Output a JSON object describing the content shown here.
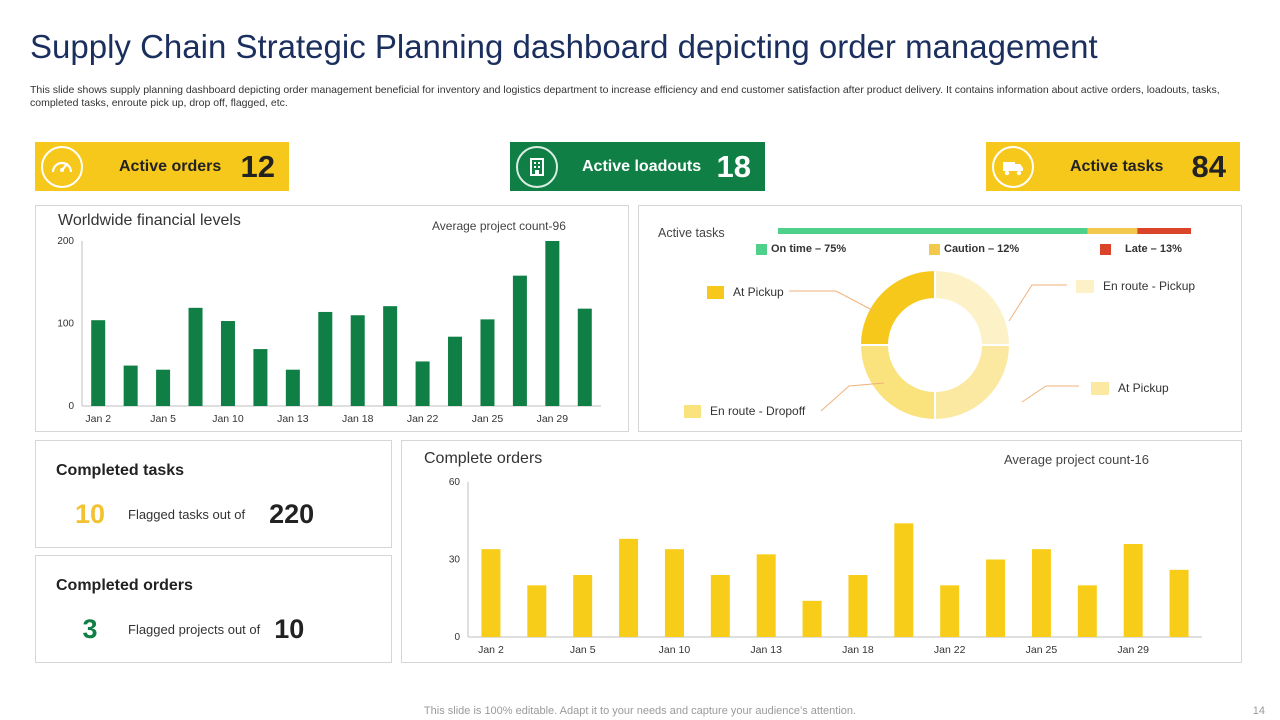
{
  "title": "Supply Chain Strategic Planning dashboard depicting order management",
  "description": "This slide shows supply planning dashboard depicting order management beneficial for inventory and logistics department to increase efficiency and end customer satisfaction after product delivery. It contains information about active orders, loadouts, tasks, completed tasks, enroute  pick up, drop off, flagged, etc.",
  "kpis": {
    "active_orders": {
      "label": "Active orders",
      "value": "12",
      "icon": "speedometer-icon"
    },
    "active_loadouts": {
      "label": "Active loadouts",
      "value": "18",
      "icon": "building-icon"
    },
    "active_tasks": {
      "label": "Active tasks",
      "value": "84",
      "icon": "truck-icon"
    }
  },
  "financial": {
    "title": "Worldwide financial levels",
    "subtitle": "Average  project count-96"
  },
  "active_tasks_panel": {
    "title": "Active tasks",
    "progress": [
      {
        "label": "On time – 75%",
        "percent": 75,
        "color": "#4fd18b"
      },
      {
        "label": "Caution  – 12%",
        "percent": 12,
        "color": "#f2c94c"
      },
      {
        "label": "Late – 13%",
        "percent": 13,
        "color": "#d9442b"
      }
    ],
    "callouts": {
      "left_top": "At Pickup",
      "right_top": "En route - Pickup",
      "right_bottom": "At Pickup",
      "left_bottom": "En route - Dropoff"
    }
  },
  "completed_tasks": {
    "title": "Completed tasks",
    "value": "10",
    "label": "Flagged tasks out of",
    "total": "220",
    "value_color": "#f2c231"
  },
  "completed_orders": {
    "title": "Completed orders",
    "value": "3",
    "label": "Flagged projects out of",
    "total": "10",
    "value_color": "#0f7f45"
  },
  "complete_orders": {
    "title": "Complete orders",
    "subtitle": "Average project count-16"
  },
  "footer": "This slide is 100% editable. Adapt it to your needs and capture your audience’s attention.",
  "page_number": "14",
  "chart_data": [
    {
      "type": "bar",
      "title": "Worldwide financial levels",
      "ylim": [
        0,
        200
      ],
      "yticks": [
        0,
        100,
        200
      ],
      "color": "#0f7f45",
      "values": [
        104,
        49,
        44,
        119,
        103,
        69,
        44,
        114,
        110,
        121,
        54,
        84,
        105,
        158,
        200,
        118
      ],
      "xtick_labels": [
        "Jan 2",
        "Jan 5",
        "Jan 10",
        "Jan 13",
        "Jan 18",
        "Jan 22",
        "Jan 25",
        "Jan 29"
      ],
      "xtick_positions": [
        0,
        2,
        4,
        6,
        8,
        10,
        12,
        14
      ]
    },
    {
      "type": "pie",
      "title": "Active tasks",
      "slices": [
        {
          "label": "En route - Pickup",
          "value": 25,
          "color": "#fdf1c7"
        },
        {
          "label": "At Pickup",
          "value": 25,
          "color": "#fbe9a2"
        },
        {
          "label": "En route - Dropoff",
          "value": 25,
          "color": "#fae27c"
        },
        {
          "label": "At Pickup",
          "value": 25,
          "color": "#f7c81c"
        }
      ]
    },
    {
      "type": "bar",
      "title": "Complete orders",
      "ylim": [
        0,
        60
      ],
      "yticks": [
        0,
        30,
        60
      ],
      "color": "#f7cd1a",
      "values": [
        34,
        20,
        24,
        38,
        34,
        24,
        32,
        14,
        24,
        44,
        20,
        30,
        34,
        20,
        36,
        26
      ],
      "xtick_labels": [
        "Jan 2",
        "Jan 5",
        "Jan 10",
        "Jan 13",
        "Jan 18",
        "Jan 22",
        "Jan 25",
        "Jan 29"
      ],
      "xtick_positions": [
        0,
        2,
        4,
        6,
        8,
        10,
        12,
        14
      ]
    }
  ]
}
